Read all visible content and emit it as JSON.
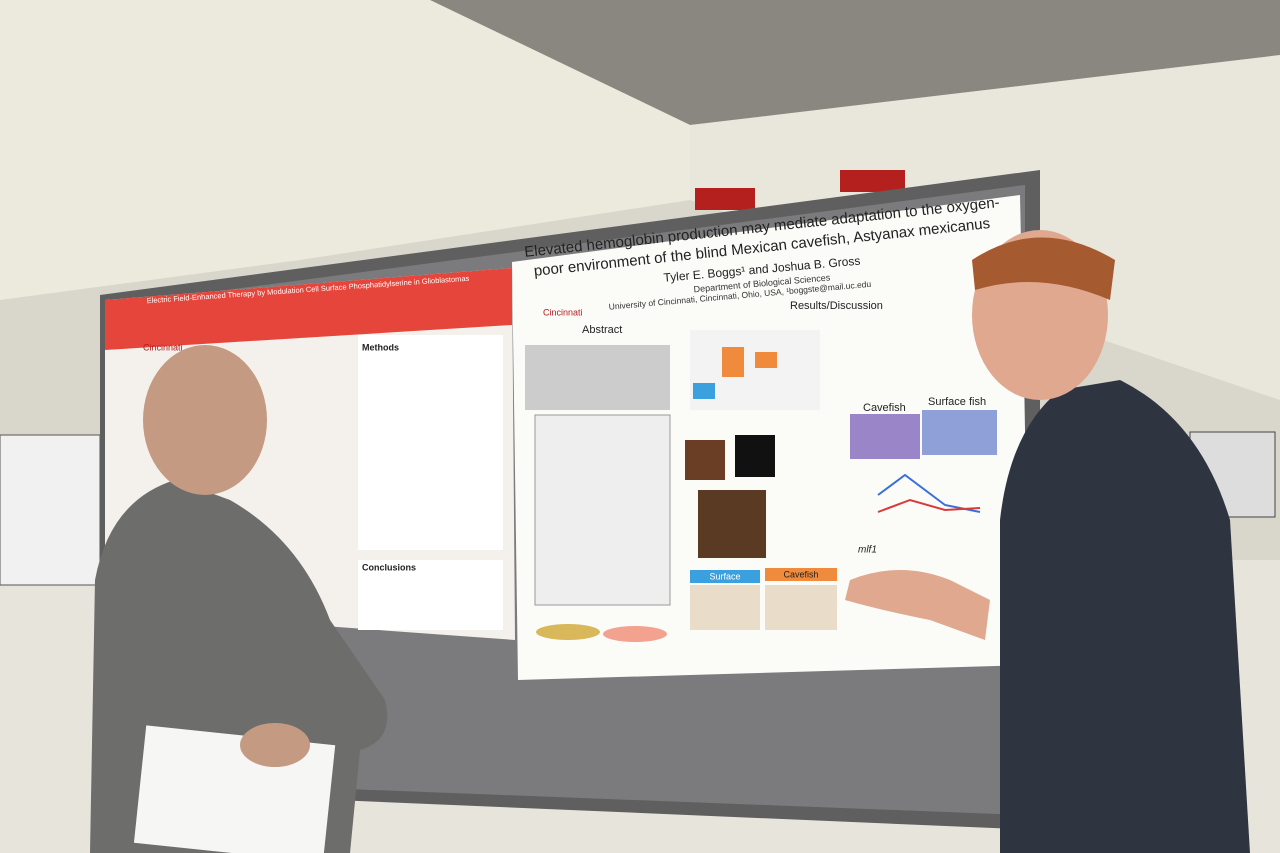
{
  "left_poster": {
    "logo": "Cincinnati",
    "title": "Electric Field-Enhanced Therapy by Modulation Cell Surface Phosphatidylserine in Glioblastomas",
    "sections": [
      "Methods",
      "Conclusions"
    ]
  },
  "right_poster": {
    "logo": "Cincinnati",
    "title_lines": [
      "Elevated hemoglobin production may mediate adaptation to the oxygen-",
      "poor environment of the blind Mexican cavefish, Astyanax mexicanus"
    ],
    "authors": "Tyler E. Boggs¹ and Joshua B. Gross",
    "department": "Department of Biological Sciences",
    "affiliation": "University of Cincinnati, Cincinnati, Ohio, USA, ¹boggste@mail.uc.edu",
    "sections": [
      "Abstract",
      "Results/Discussion"
    ],
    "figure_labels": [
      "Cavefish",
      "Surface fish",
      "Surface",
      "Cavefish",
      "mlf1"
    ]
  }
}
